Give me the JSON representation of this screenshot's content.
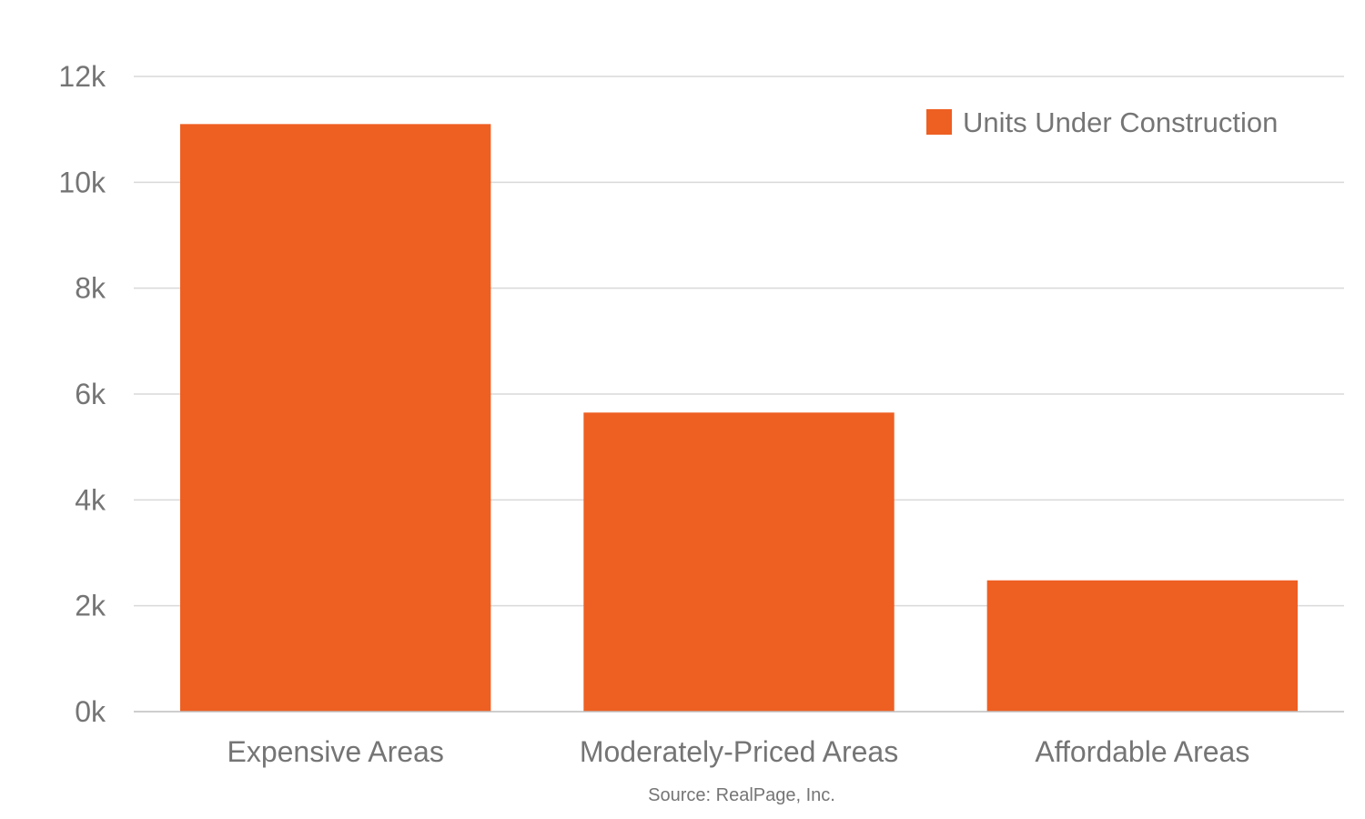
{
  "chart_data": {
    "type": "bar",
    "categories": [
      "Expensive Areas",
      "Moderately-Priced Areas",
      "Affordable Areas"
    ],
    "series": [
      {
        "name": "Units Under Construction",
        "values": [
          11100,
          5650,
          2480
        ],
        "color": "#ee5f22"
      }
    ],
    "yticks": [
      0,
      2000,
      4000,
      6000,
      8000,
      10000,
      12000
    ],
    "ytick_labels": [
      "0k",
      "2k",
      "4k",
      "6k",
      "8k",
      "10k",
      "12k"
    ],
    "ylim": [
      0,
      12000
    ],
    "grid": true,
    "legend": "top-right",
    "source": "Source: RealPage, Inc."
  }
}
